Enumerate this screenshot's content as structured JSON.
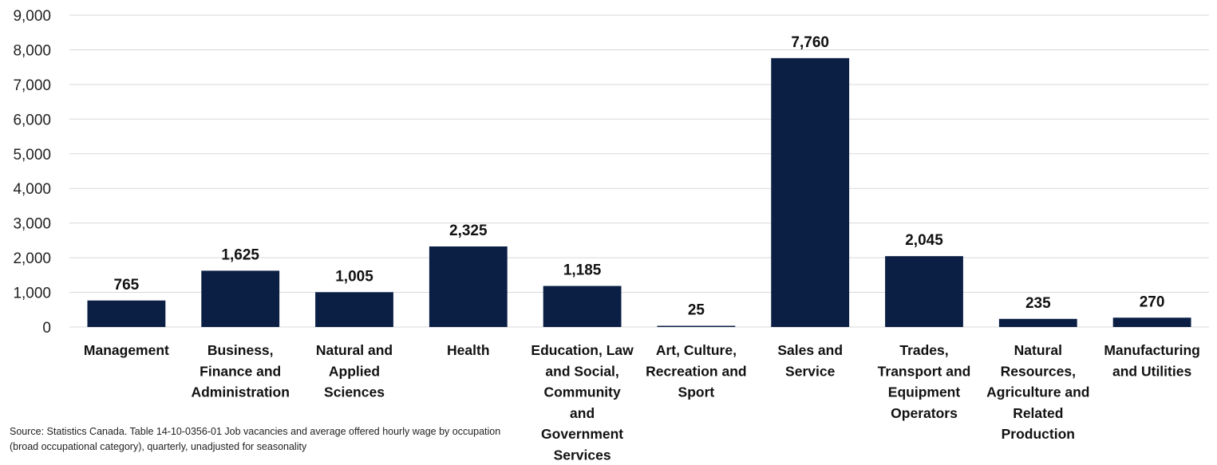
{
  "chart_data": {
    "type": "bar",
    "categories": [
      "Management",
      "Business, Finance and Administration",
      "Natural and Applied Sciences",
      "Health",
      "Education, Law and Social, Community and Government Services",
      "Art, Culture, Recreation and Sport",
      "Sales and Service",
      "Trades, Transport and Equipment Operators",
      "Natural Resources, Agriculture and Related Production",
      "Manufacturing and Utilities"
    ],
    "category_lines": [
      [
        "Management"
      ],
      [
        "Business,",
        "Finance and",
        "Administration"
      ],
      [
        "Natural and",
        "Applied",
        "Sciences"
      ],
      [
        "Health"
      ],
      [
        "Education, Law",
        "and Social,",
        "Community",
        "and",
        "Government",
        "Services"
      ],
      [
        "Art, Culture,",
        "Recreation and",
        "Sport"
      ],
      [
        "Sales and",
        "Service"
      ],
      [
        "Trades,",
        "Transport and",
        "Equipment",
        "Operators"
      ],
      [
        "Natural",
        "Resources,",
        "Agriculture and",
        "Related",
        "Production"
      ],
      [
        "Manufacturing",
        "and Utilities"
      ]
    ],
    "values": [
      765,
      1625,
      1005,
      2325,
      1185,
      25,
      7760,
      2045,
      235,
      270
    ],
    "value_labels": [
      "765",
      "1,625",
      "1,005",
      "2,325",
      "1,185",
      "25",
      "7,760",
      "2,045",
      "235",
      "270"
    ],
    "ylim": [
      0,
      9000
    ],
    "yticks": [
      0,
      1000,
      2000,
      3000,
      4000,
      5000,
      6000,
      7000,
      8000,
      9000
    ],
    "ytick_labels": [
      "0",
      "1,000",
      "2,000",
      "3,000",
      "4,000",
      "5,000",
      "6,000",
      "7,000",
      "8,000",
      "9,000"
    ],
    "title": "",
    "xlabel": "",
    "ylabel": "",
    "grid": true,
    "legend": "none",
    "bar_color": "#0b1f45",
    "grid_color": "#d9d9d9"
  },
  "source_note": "Source: Statistics Canada. Table 14-10-0356-01  Job vacancies and average offered hourly wage by occupation (broad occupational category), quarterly, unadjusted for seasonality"
}
